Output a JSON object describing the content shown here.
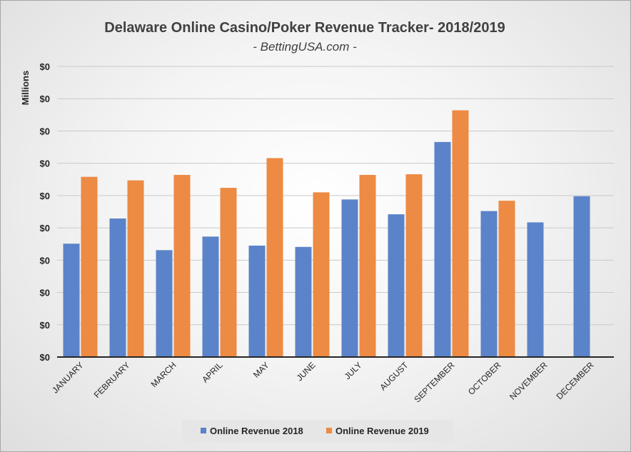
{
  "chart_data": {
    "type": "bar",
    "title": "Delaware Online Casino/Poker Revenue Tracker- 2018/2019",
    "subtitle": "- BettingUSA.com -",
    "ylabel": "Millions",
    "xlabel": "",
    "categories": [
      "JANUARY",
      "FEBRUARY",
      "MARCH",
      "APRIL",
      "MAY",
      "JUNE",
      "JULY",
      "AUGUST",
      "SEPTEMBER",
      "OCTOBER",
      "NOVEMBER",
      "DECEMBER"
    ],
    "y_tick_labels": [
      "$0",
      "$0",
      "$0",
      "$0",
      "$0",
      "$0",
      "$0",
      "$0",
      "$0",
      "$0"
    ],
    "ylim": [
      0,
      9
    ],
    "series": [
      {
        "name": "Online Revenue 2018",
        "color": "#5b83c9",
        "values": [
          3.51,
          4.29,
          3.31,
          3.73,
          3.45,
          3.41,
          4.88,
          4.42,
          6.66,
          4.52,
          4.17,
          4.98
        ]
      },
      {
        "name": "Online Revenue 2019",
        "color": "#ed8a43",
        "values": [
          5.58,
          5.47,
          5.64,
          5.24,
          6.16,
          5.1,
          5.64,
          5.66,
          7.64,
          4.84,
          null,
          null
        ]
      }
    ],
    "grid": true,
    "legend_position": "bottom"
  }
}
